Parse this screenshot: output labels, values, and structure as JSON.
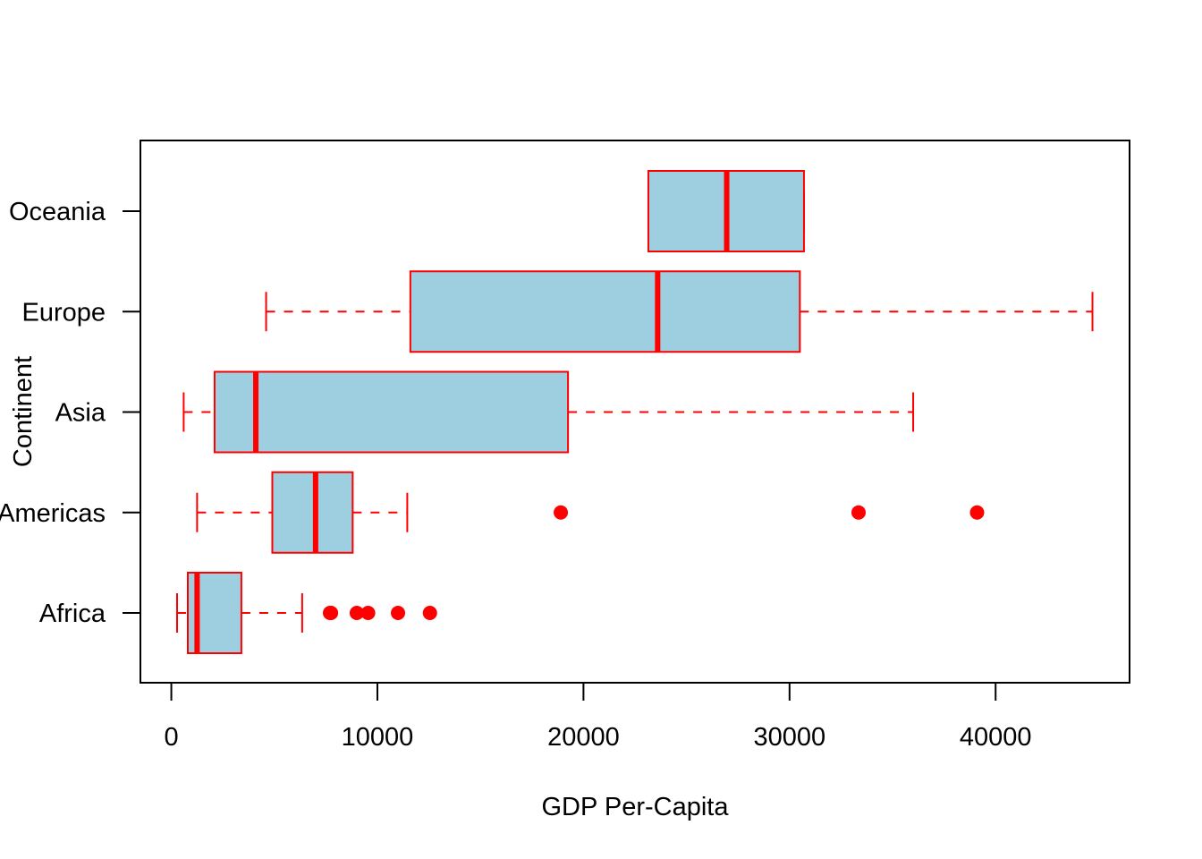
{
  "chart_data": {
    "type": "boxplot",
    "orientation": "horizontal",
    "xlabel": "GDP Per-Capita",
    "ylabel": "Continent",
    "xlim": [
      -1500,
      46500
    ],
    "x_ticks": [
      0,
      10000,
      20000,
      30000,
      40000
    ],
    "x_tick_labels": [
      "0",
      "10000",
      "20000",
      "30000",
      "40000"
    ],
    "box_fill": "#9ECFE0",
    "line_color": "#FF0000",
    "categories": [
      {
        "name": "Africa",
        "whisker_low": 280,
        "q1": 800,
        "median": 1250,
        "q3": 3400,
        "whisker_high": 6350,
        "outliers": [
          7700,
          7750,
          9000,
          9550,
          11000,
          12550
        ]
      },
      {
        "name": "Americas",
        "whisker_low": 1250,
        "q1": 4900,
        "median": 7000,
        "q3": 8800,
        "whisker_high": 11450,
        "outliers": [
          18900,
          33350,
          39100
        ]
      },
      {
        "name": "Asia",
        "whisker_low": 600,
        "q1": 2100,
        "median": 4100,
        "q3": 19250,
        "whisker_high": 36000,
        "outliers": []
      },
      {
        "name": "Europe",
        "whisker_low": 4600,
        "q1": 11600,
        "median": 23600,
        "q3": 30500,
        "whisker_high": 44700,
        "outliers": []
      },
      {
        "name": "Oceania",
        "whisker_low": 23150,
        "q1": 23150,
        "median": 26950,
        "q3": 30700,
        "whisker_high": 30700,
        "outliers": []
      }
    ]
  }
}
